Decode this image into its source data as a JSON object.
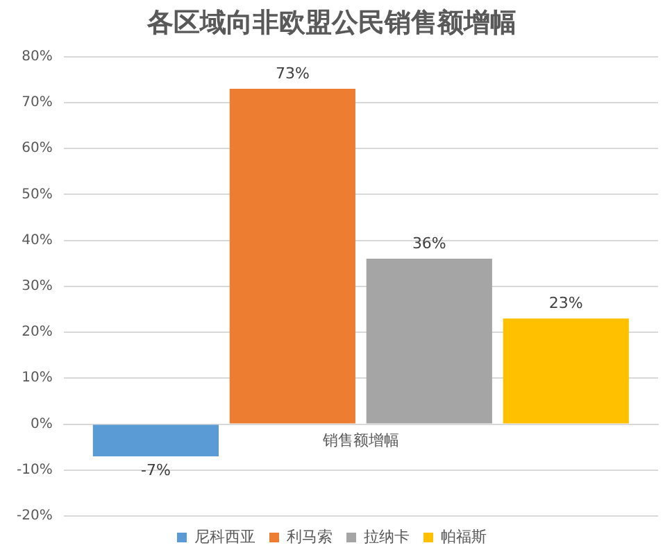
{
  "chart_data": {
    "type": "bar",
    "title": "各区域向非欧盟公民销售额增幅",
    "categories": [
      "销售额增幅"
    ],
    "series": [
      {
        "name": "尼科西亚",
        "color": "#5b9bd5",
        "values": [
          -7
        ],
        "value_labels": [
          "-7%"
        ]
      },
      {
        "name": "利马索",
        "color": "#ed7d31",
        "values": [
          73
        ],
        "value_labels": [
          "73%"
        ]
      },
      {
        "name": "拉纳卡",
        "color": "#a5a5a5",
        "values": [
          36
        ],
        "value_labels": [
          "36%"
        ]
      },
      {
        "name": "帕福斯",
        "color": "#ffc000",
        "values": [
          23
        ],
        "value_labels": [
          "23%"
        ]
      }
    ],
    "ylim": [
      -20,
      80
    ],
    "yticks": [
      {
        "value": -20,
        "label": "-20%"
      },
      {
        "value": -10,
        "label": "-10%"
      },
      {
        "value": 0,
        "label": "0%"
      },
      {
        "value": 10,
        "label": "10%"
      },
      {
        "value": 20,
        "label": "20%"
      },
      {
        "value": 30,
        "label": "30%"
      },
      {
        "value": 40,
        "label": "40%"
      },
      {
        "value": 50,
        "label": "50%"
      },
      {
        "value": 60,
        "label": "60%"
      },
      {
        "value": 70,
        "label": "70%"
      },
      {
        "value": 80,
        "label": "80%"
      }
    ],
    "grid": "y",
    "legend": "bottom"
  }
}
